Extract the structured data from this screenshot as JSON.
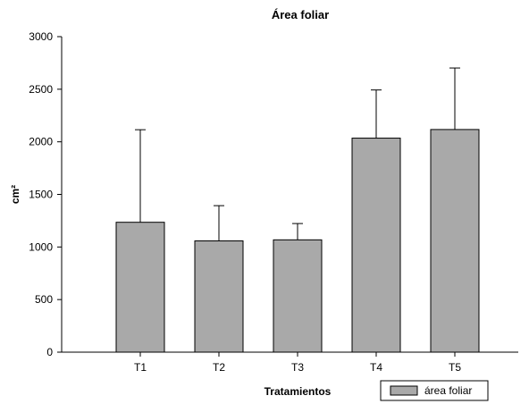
{
  "chart_data": {
    "type": "bar",
    "title": "Área foliar",
    "xlabel": "Tratamientos",
    "ylabel": "cm²",
    "categories": [
      "T1",
      "T2",
      "T3",
      "T4",
      "T5"
    ],
    "series": [
      {
        "name": "área foliar",
        "values": [
          1235,
          1058,
          1068,
          2035,
          2117
        ],
        "error_plus": [
          880,
          335,
          155,
          458,
          585
        ],
        "color": "#a9a9a9"
      }
    ],
    "ylim": [
      0,
      3000
    ],
    "yticks": [
      0,
      500,
      1000,
      1500,
      2000,
      2500,
      3000
    ],
    "grid": false,
    "legend_position": "bottom-right"
  }
}
